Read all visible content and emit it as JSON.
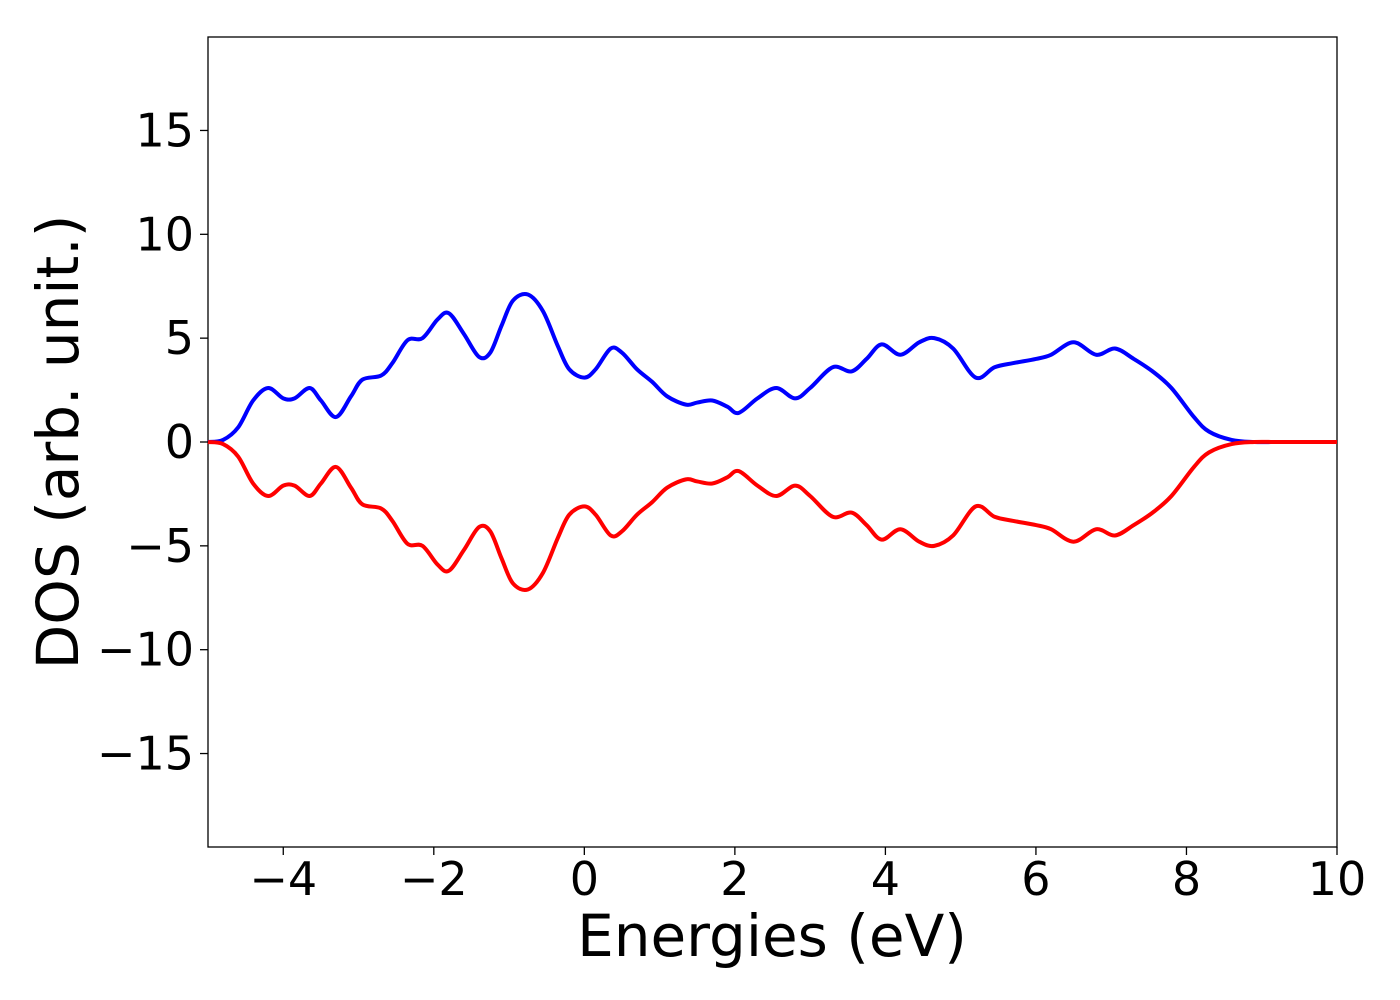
{
  "chart_data": {
    "type": "line",
    "title": "",
    "xlabel": "Energies (eV)",
    "ylabel": "DOS (arb. unit.)",
    "xlim": [
      -5,
      10
    ],
    "ylim": [
      -19.5,
      19.5
    ],
    "grid": false,
    "legend": "none",
    "x_ticks": [
      -4,
      -2,
      0,
      2,
      4,
      6,
      8,
      10
    ],
    "x_tick_labels": [
      "−4",
      "−2",
      "0",
      "2",
      "4",
      "6",
      "8",
      "10"
    ],
    "y_ticks": [
      15,
      10,
      5,
      0,
      -5,
      -10,
      -15
    ],
    "y_tick_labels": [
      "15",
      "10",
      "5",
      "0",
      "−5",
      "−10",
      "−15"
    ],
    "x": [
      -5.0,
      -4.8,
      -4.6,
      -4.4,
      -4.2,
      -4.0,
      -3.85,
      -3.65,
      -3.5,
      -3.3,
      -3.1,
      -2.95,
      -2.7,
      -2.55,
      -2.35,
      -2.15,
      -1.95,
      -1.8,
      -1.6,
      -1.4,
      -1.25,
      -1.1,
      -0.95,
      -0.75,
      -0.55,
      -0.35,
      -0.2,
      0.0,
      0.15,
      0.35,
      0.5,
      0.7,
      0.9,
      1.1,
      1.35,
      1.5,
      1.7,
      1.9,
      2.05,
      2.3,
      2.55,
      2.8,
      3.0,
      3.3,
      3.55,
      3.75,
      3.95,
      4.2,
      4.45,
      4.65,
      4.9,
      5.2,
      5.45,
      5.7,
      6.0,
      6.2,
      6.5,
      6.8,
      7.05,
      7.3,
      7.55,
      7.8,
      8.1,
      8.3,
      8.6,
      8.9,
      9.2,
      9.6,
      10.0
    ],
    "series": [
      {
        "color": "#0000ff",
        "values": [
          0.0,
          0.1,
          0.7,
          2.0,
          2.6,
          2.1,
          2.1,
          2.6,
          2.0,
          1.2,
          2.2,
          3.0,
          3.2,
          3.8,
          4.9,
          5.0,
          5.9,
          6.2,
          5.2,
          4.1,
          4.3,
          5.6,
          6.8,
          7.1,
          6.3,
          4.6,
          3.5,
          3.1,
          3.5,
          4.5,
          4.3,
          3.5,
          2.9,
          2.2,
          1.8,
          1.9,
          2.0,
          1.7,
          1.4,
          2.1,
          2.6,
          2.1,
          2.6,
          3.6,
          3.4,
          4.0,
          4.7,
          4.2,
          4.8,
          5.0,
          4.5,
          3.1,
          3.6,
          3.8,
          4.0,
          4.2,
          4.8,
          4.2,
          4.5,
          4.0,
          3.4,
          2.6,
          1.2,
          0.5,
          0.1,
          0.0,
          0.0,
          0.0,
          0.0
        ]
      },
      {
        "color": "#ff0000",
        "values": [
          0.0,
          -0.1,
          -0.7,
          -2.0,
          -2.6,
          -2.1,
          -2.1,
          -2.6,
          -2.0,
          -1.2,
          -2.2,
          -3.0,
          -3.2,
          -3.8,
          -4.9,
          -5.0,
          -5.9,
          -6.2,
          -5.2,
          -4.1,
          -4.3,
          -5.6,
          -6.8,
          -7.1,
          -6.3,
          -4.6,
          -3.5,
          -3.1,
          -3.5,
          -4.5,
          -4.3,
          -3.5,
          -2.9,
          -2.2,
          -1.8,
          -1.9,
          -2.0,
          -1.7,
          -1.4,
          -2.1,
          -2.6,
          -2.1,
          -2.6,
          -3.6,
          -3.4,
          -4.0,
          -4.7,
          -4.2,
          -4.8,
          -5.0,
          -4.5,
          -3.1,
          -3.6,
          -3.8,
          -4.0,
          -4.2,
          -4.8,
          -4.2,
          -4.5,
          -4.0,
          -3.4,
          -2.6,
          -1.2,
          -0.5,
          -0.1,
          0.0,
          0.0,
          0.0,
          0.0
        ]
      }
    ]
  }
}
